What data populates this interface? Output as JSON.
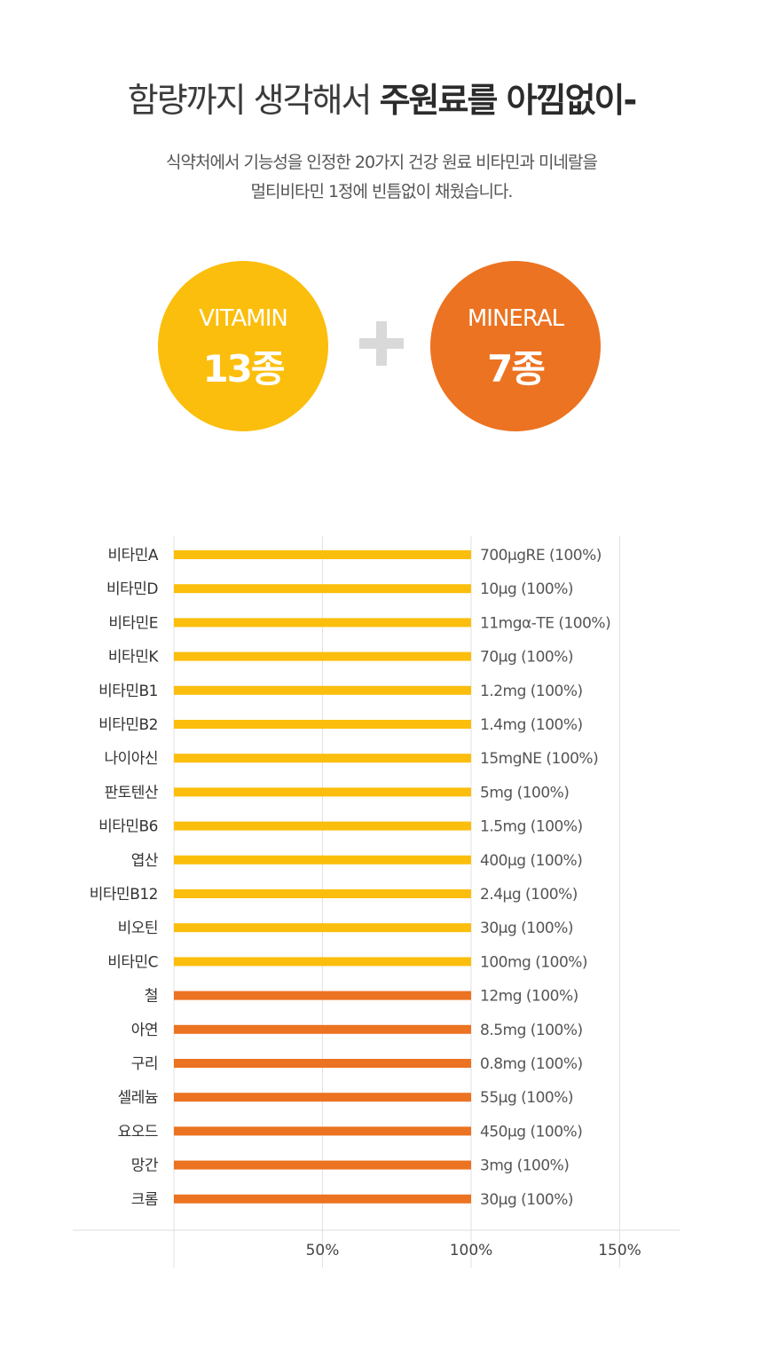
{
  "header": {
    "title_light": "함량까지 생각해서 ",
    "title_bold": "주원료를 아낌없이-",
    "subtitle_line1": "식약처에서 기능성을 인정한 20가지 건강 원료 비타민과 미네랄을",
    "subtitle_line2": "멀티비타민 1정에 빈틈없이 채웠습니다."
  },
  "summary": {
    "vitamin": {
      "name": "VITAMIN",
      "count": "13종",
      "color": "#FBBE0C"
    },
    "mineral": {
      "name": "MINERAL",
      "count": "7종",
      "color": "#EC7321"
    },
    "plus_icon": "plus-icon"
  },
  "chart_data": {
    "type": "bar",
    "orientation": "horizontal",
    "xlim": [
      0,
      150
    ],
    "xticks": [
      "50%",
      "100%",
      "150%"
    ],
    "grid": true,
    "categories": [
      "비타민A",
      "비타민D",
      "비타민E",
      "비타민K",
      "비타민B1",
      "비타민B2",
      "나이아신",
      "판토텐산",
      "비타민B6",
      "엽산",
      "비타민B12",
      "비오틴",
      "비타민C",
      "철",
      "아연",
      "구리",
      "셀레늄",
      "요오드",
      "망간",
      "크롬"
    ],
    "values": [
      100,
      100,
      100,
      100,
      100,
      100,
      100,
      100,
      100,
      100,
      100,
      100,
      100,
      100,
      100,
      100,
      100,
      100,
      100,
      100
    ],
    "labels": [
      "700μgRE (100%)",
      "10μg (100%)",
      "11mgα-TE (100%)",
      "70μg (100%)",
      "1.2mg (100%)",
      "1.4mg (100%)",
      "15mgNE (100%)",
      "5mg (100%)",
      "1.5mg (100%)",
      "400μg (100%)",
      "2.4μg (100%)",
      "30μg (100%)",
      "100mg (100%)",
      "12mg (100%)",
      "8.5mg (100%)",
      "0.8mg (100%)",
      "55μg (100%)",
      "450μg (100%)",
      "3mg (100%)",
      "30μg (100%)"
    ],
    "groups": [
      "vitamin",
      "vitamin",
      "vitamin",
      "vitamin",
      "vitamin",
      "vitamin",
      "vitamin",
      "vitamin",
      "vitamin",
      "vitamin",
      "vitamin",
      "vitamin",
      "vitamin",
      "mineral",
      "mineral",
      "mineral",
      "mineral",
      "mineral",
      "mineral",
      "mineral"
    ],
    "colors": {
      "vitamin": "#FBBE0C",
      "mineral": "#EC7321"
    }
  }
}
